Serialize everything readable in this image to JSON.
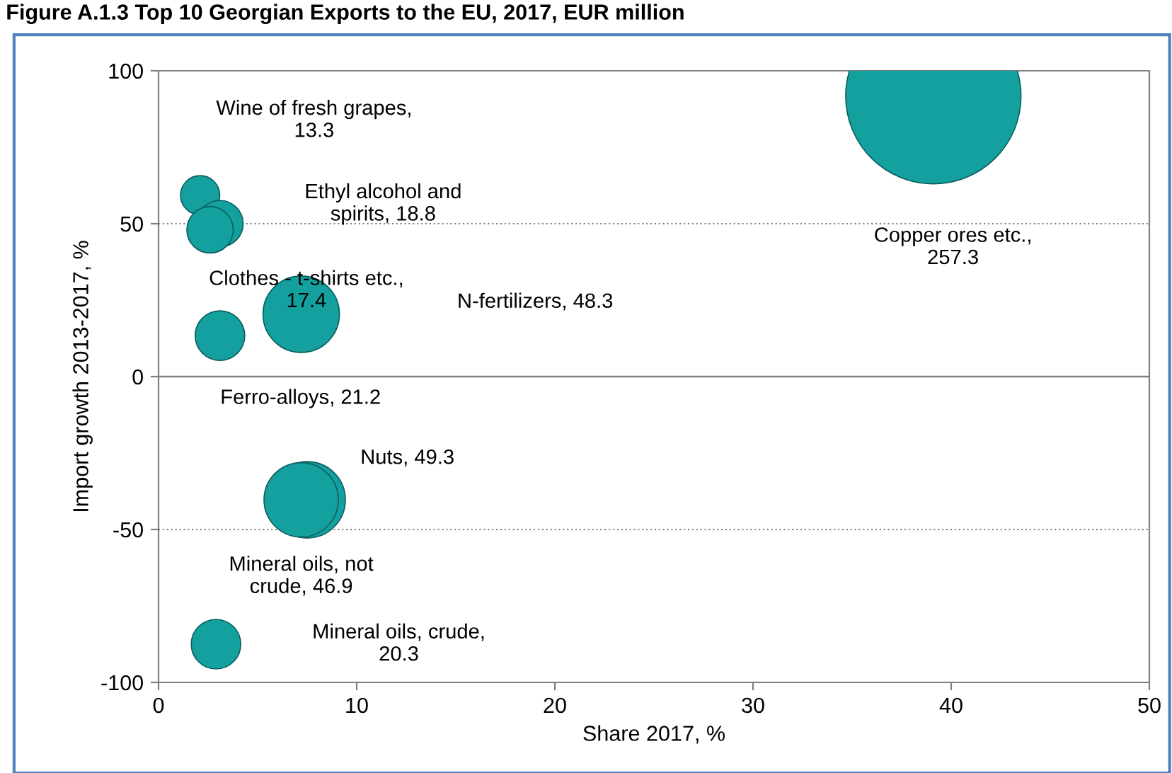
{
  "chart_data": {
    "type": "bubble",
    "title": "Figure A.1.3 Top 10 Georgian Exports to the EU, 2017, EUR million",
    "xlabel": "Share 2017, %",
    "ylabel": "Import growth 2013-2017, %",
    "x": [
      2.1,
      3.1,
      2.6,
      7.2,
      3.1,
      7.5,
      7.2,
      2.9,
      39.1
    ],
    "values": [
      59.3,
      50,
      48,
      20.4,
      13.4,
      -40.3,
      -40.3,
      -87.5,
      91.7
    ],
    "sizes": [
      0.05,
      0.07,
      0.07,
      0.19,
      0.08,
      0.19,
      0.18,
      0.08,
      1
    ],
    "color": "#15a0a0",
    "annotations": [
      "Wine of fresh grapes,\n13.3",
      "Ethyl alcohol and\nspirits, 18.8",
      "Clothes - t-shirts etc.,\n17.4",
      "N-fertilizers, 48.3",
      "Ferro-alloys, 21.2",
      "Nuts, 49.3",
      "Mineral oils, not\ncrude, 46.9",
      "Mineral oils, crude,\n20.3",
      "Copper ores etc.,\n257.3"
    ],
    "xlim": [
      0,
      50
    ],
    "xticks": [
      0,
      10,
      20,
      30,
      40,
      50
    ],
    "ylim": [
      -100,
      100
    ],
    "yticks": [
      -100,
      -50,
      0,
      50,
      100
    ],
    "ref_lines": [
      {
        "axis": "y",
        "value": 0,
        "label": null,
        "color": "#808080",
        "line_style": "solid"
      }
    ],
    "grid": "y"
  }
}
